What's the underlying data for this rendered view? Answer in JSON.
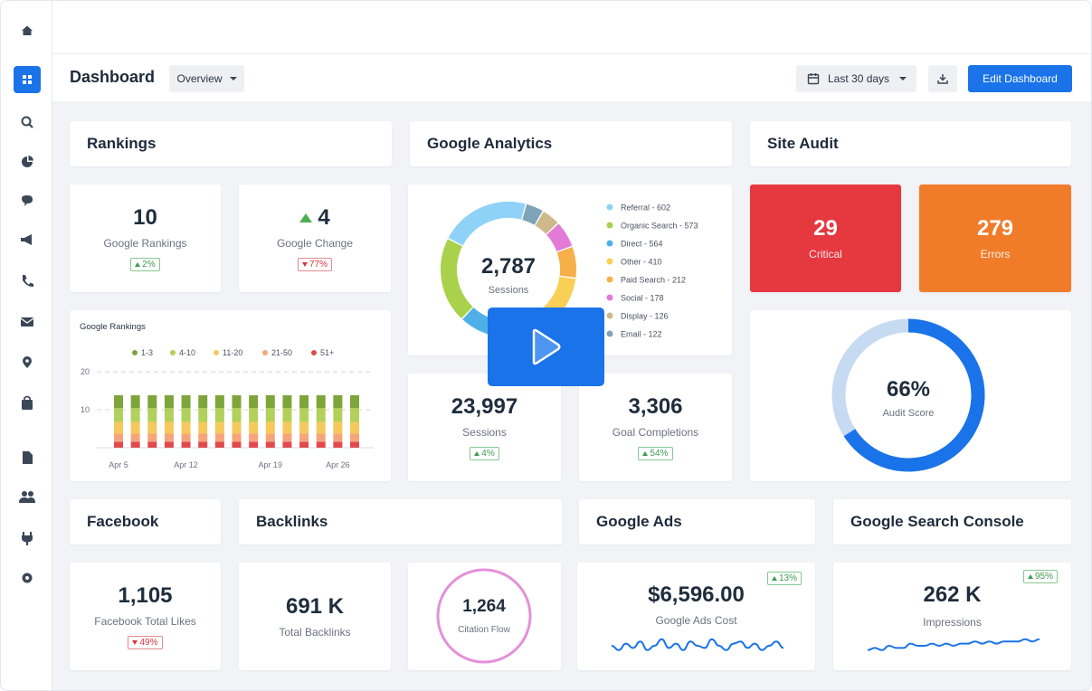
{
  "header": {
    "title": "Dashboard",
    "view_selector": "Overview",
    "date_range": "Last 30 days",
    "edit_button": "Edit Dashboard"
  },
  "rankings": {
    "title": "Rankings",
    "google_rankings": {
      "value": "10",
      "label": "Google Rankings",
      "change": "2%",
      "direction": "up"
    },
    "google_change": {
      "value": "4",
      "trend": "up",
      "label": "Google Change",
      "change": "77%",
      "direction": "down"
    },
    "chart": {
      "type": "bar",
      "stacked": true,
      "title": "Google Rankings",
      "categories": [
        "Apr 5",
        null,
        null,
        null,
        "Apr 12",
        null,
        null,
        null,
        null,
        "Apr 19",
        null,
        null,
        null,
        "Apr 26",
        null
      ],
      "series": [
        {
          "name": "1-3",
          "color": "#7ea53a",
          "values": [
            3.4,
            3.4,
            3.4,
            3.4,
            3.4,
            3.4,
            3.4,
            3.4,
            3.4,
            3.4,
            3.4,
            3.4,
            3.4,
            3.4,
            3.4
          ]
        },
        {
          "name": "4-10",
          "color": "#b3d05a",
          "values": [
            3.6,
            3.6,
            3.6,
            3.6,
            3.6,
            3.6,
            3.6,
            3.6,
            3.6,
            3.6,
            3.6,
            3.6,
            3.6,
            3.6,
            3.6
          ]
        },
        {
          "name": "11-20",
          "color": "#f5c95c",
          "values": [
            3.1,
            3.1,
            3.1,
            3.1,
            3.1,
            3.1,
            3.1,
            3.1,
            3.1,
            3.1,
            3.1,
            3.1,
            3.1,
            3.1,
            3.1
          ]
        },
        {
          "name": "21-50",
          "color": "#f6a47c",
          "values": [
            2.1,
            2.1,
            2.1,
            2.1,
            2.1,
            2.1,
            2.1,
            2.1,
            2.1,
            2.1,
            2.1,
            2.1,
            2.1,
            2.1,
            2.1
          ]
        },
        {
          "name": "51+",
          "color": "#e04a4f",
          "values": [
            1.6,
            1.6,
            1.6,
            1.6,
            1.6,
            1.6,
            1.6,
            1.6,
            1.6,
            1.6,
            1.6,
            1.6,
            1.6,
            1.6,
            1.6
          ]
        }
      ],
      "ylim": [
        0,
        22
      ],
      "yticks": [
        10,
        20
      ],
      "grid": true
    }
  },
  "google_analytics": {
    "title": "Google Analytics",
    "traffic": {
      "type": "donut",
      "total": "2,787",
      "total_label": "Sessions",
      "labels": [
        "Referral - 602",
        "Organic Search - 573",
        "Direct - 564",
        "Other - 410",
        "Paid Search - 212",
        "Social - 178",
        "Display - 126",
        "Email - 122"
      ],
      "values": [
        602,
        573,
        564,
        410,
        212,
        178,
        126,
        122
      ],
      "colors": [
        "#8fd2f7",
        "#aad14b",
        "#4fb0e8",
        "#f9cf55",
        "#f6b04a",
        "#e37ad6",
        "#cdb98a",
        "#7fa3b8"
      ]
    },
    "sessions": {
      "value": "23,997",
      "label": "Sessions",
      "change": "4%",
      "direction": "up"
    },
    "goal_completions": {
      "value": "3,306",
      "label": "Goal Completions",
      "change": "54%",
      "direction": "up"
    }
  },
  "site_audit": {
    "title": "Site Audit",
    "critical": {
      "value": "29",
      "label": "Critical"
    },
    "errors": {
      "value": "279",
      "label": "Errors"
    },
    "audit_score": {
      "type": "donut",
      "value": 66,
      "value_label": "66%",
      "label": "Audit Score",
      "color": "#1a73e8",
      "track_color": "#c6daf2"
    }
  },
  "facebook": {
    "title": "Facebook",
    "total_likes": {
      "value": "1,105",
      "label": "Facebook Total Likes",
      "change": "49%",
      "direction": "down"
    }
  },
  "backlinks": {
    "title": "Backlinks",
    "total": {
      "value": "691 K",
      "label": "Total Backlinks"
    },
    "citation_flow": {
      "value": "1,264",
      "label": "Citation Flow"
    }
  },
  "google_ads": {
    "title": "Google Ads",
    "cost": {
      "value": "$6,596.00",
      "label": "Google Ads Cost",
      "change": "13%",
      "direction": "up",
      "sparkline": {
        "color": "#1a73e8",
        "ylim": [
          0,
          10
        ],
        "values": [
          5,
          3,
          6,
          4,
          7,
          3,
          5,
          8,
          4,
          6,
          3,
          7,
          5,
          4,
          8,
          5,
          3,
          6,
          7,
          4,
          6,
          3,
          5,
          7,
          4
        ]
      }
    }
  },
  "search_console": {
    "title": "Google Search Console",
    "impressions": {
      "value": "262 K",
      "label": "Impressions",
      "change": "95%",
      "direction": "up",
      "sparkline": {
        "color": "#1a73e8",
        "ylim": [
          0,
          10
        ],
        "values": [
          3,
          4,
          3,
          5,
          4,
          4,
          6,
          5,
          5,
          6,
          5,
          6,
          5,
          6,
          6,
          7,
          6,
          7,
          6,
          7,
          7,
          7,
          8,
          7,
          8
        ]
      }
    }
  }
}
